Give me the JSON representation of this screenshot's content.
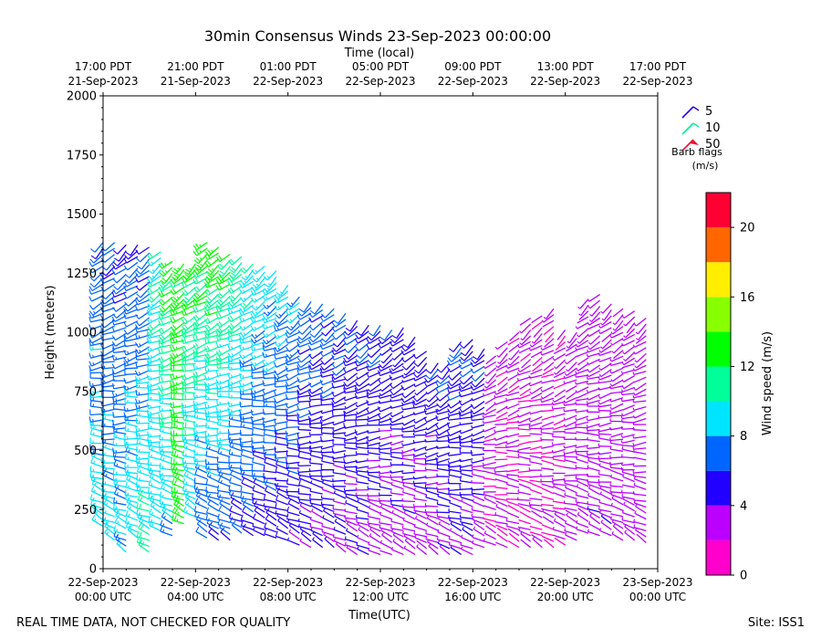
{
  "chart_data": {
    "type": "wind-barb time-height",
    "title": "30min Consensus Winds 23-Sep-2023 00:00:00",
    "top_axis_label": "Time (local)",
    "xlabel": "Time(UTC)",
    "ylabel": "Height (meters)",
    "ylim": [
      0,
      2000
    ],
    "xlim_hours_utc": [
      0,
      24
    ],
    "y_ticks": [
      "0",
      "250",
      "500",
      "750",
      "1000",
      "1250",
      "1500",
      "1750",
      "2000"
    ],
    "bottom_ticks": [
      {
        "line1": "22-Sep-2023",
        "line2": "00:00 UTC",
        "hour": 0
      },
      {
        "line1": "22-Sep-2023",
        "line2": "04:00 UTC",
        "hour": 4
      },
      {
        "line1": "22-Sep-2023",
        "line2": "08:00 UTC",
        "hour": 8
      },
      {
        "line1": "22-Sep-2023",
        "line2": "12:00 UTC",
        "hour": 12
      },
      {
        "line1": "22-Sep-2023",
        "line2": "16:00 UTC",
        "hour": 16
      },
      {
        "line1": "22-Sep-2023",
        "line2": "20:00 UTC",
        "hour": 20
      },
      {
        "line1": "23-Sep-2023",
        "line2": "00:00 UTC",
        "hour": 24
      }
    ],
    "top_ticks": [
      {
        "line1": "17:00 PDT",
        "line2": "21-Sep-2023",
        "hour": 0
      },
      {
        "line1": "21:00 PDT",
        "line2": "21-Sep-2023",
        "hour": 4
      },
      {
        "line1": "01:00 PDT",
        "line2": "22-Sep-2023",
        "hour": 8
      },
      {
        "line1": "05:00 PDT",
        "line2": "22-Sep-2023",
        "hour": 12
      },
      {
        "line1": "09:00 PDT",
        "line2": "22-Sep-2023",
        "hour": 16
      },
      {
        "line1": "13:00 PDT",
        "line2": "22-Sep-2023",
        "hour": 20
      },
      {
        "line1": "17:00 PDT",
        "line2": "22-Sep-2023",
        "hour": 24
      }
    ],
    "legend": {
      "title_line1": "Barb flags",
      "title_line2": "(m/s)",
      "entries": [
        {
          "label": "5",
          "color": "#2200ee"
        },
        {
          "label": "10",
          "color": "#00ee99"
        },
        {
          "label": "50",
          "color": "#ee1133"
        }
      ]
    },
    "colorbar": {
      "label": "Wind speed (m/s)",
      "range": [
        0,
        22
      ],
      "ticks": [
        "0",
        "4",
        "8",
        "12",
        "16",
        "20"
      ],
      "tick_values": [
        0,
        4,
        8,
        12,
        16,
        20
      ],
      "colors": [
        "#ff00cc",
        "#bb00ff",
        "#2200ff",
        "#0066ff",
        "#00e5ff",
        "#00ff99",
        "#00ff00",
        "#88ff00",
        "#ffee00",
        "#ff6600",
        "#ff0033"
      ]
    },
    "profiles": [
      {
        "hour": 0.0,
        "top": 1380,
        "bottom": 180,
        "speed_top": 6.5,
        "speed_bottom": 9.0,
        "dir_top": 225,
        "dir_bottom": 300
      },
      {
        "hour": 0.5,
        "top": 1380,
        "bottom": 120,
        "speed_top": 6.0,
        "speed_bottom": 9.0,
        "dir_top": 225,
        "dir_bottom": 300
      },
      {
        "hour": 1.0,
        "top": 1370,
        "bottom": 70,
        "speed_top": 6.0,
        "speed_bottom": 8.5,
        "dir_top": 225,
        "dir_bottom": 300
      },
      {
        "hour": 1.5,
        "top": 1370,
        "bottom": 130,
        "speed_top": 6.0,
        "speed_bottom": 9.5,
        "dir_top": 225,
        "dir_bottom": 300
      },
      {
        "hour": 2.0,
        "top": 1360,
        "bottom": 70,
        "speed_top": 6.0,
        "speed_bottom": 10.5,
        "dir_top": 225,
        "dir_bottom": 300
      },
      {
        "hour": 2.5,
        "top": 1340,
        "bottom": 160,
        "speed_top": 10.0,
        "speed_bottom": 8.5,
        "dir_top": 225,
        "dir_bottom": 300
      },
      {
        "hour": 3.0,
        "top": 1300,
        "bottom": 140,
        "speed_top": 12.5,
        "speed_bottom": 8.0,
        "dir_top": 225,
        "dir_bottom": 300
      },
      {
        "hour": 3.5,
        "top": 1290,
        "bottom": 190,
        "speed_top": 12.5,
        "speed_bottom": 13.0,
        "dir_top": 225,
        "dir_bottom": 300
      },
      {
        "hour": 4.0,
        "top": 1290,
        "bottom": 220,
        "speed_top": 12.5,
        "speed_bottom": 8.5,
        "dir_top": 225,
        "dir_bottom": 300
      },
      {
        "hour": 4.5,
        "top": 1380,
        "bottom": 130,
        "speed_top": 13.0,
        "speed_bottom": 6.5,
        "dir_top": 225,
        "dir_bottom": 300
      },
      {
        "hour": 5.0,
        "top": 1360,
        "bottom": 120,
        "speed_top": 13.0,
        "speed_bottom": 6.0,
        "dir_top": 225,
        "dir_bottom": 300
      },
      {
        "hour": 5.5,
        "top": 1330,
        "bottom": 120,
        "speed_top": 12.5,
        "speed_bottom": 6.0,
        "dir_top": 225,
        "dir_bottom": 300
      },
      {
        "hour": 6.0,
        "top": 1320,
        "bottom": 150,
        "speed_top": 11.5,
        "speed_bottom": 5.5,
        "dir_top": 225,
        "dir_bottom": 300
      },
      {
        "hour": 6.5,
        "top": 1290,
        "bottom": 140,
        "speed_top": 10.0,
        "speed_bottom": 5.5,
        "dir_top": 225,
        "dir_bottom": 300
      },
      {
        "hour": 7.0,
        "top": 1280,
        "bottom": 140,
        "speed_top": 9.5,
        "speed_bottom": 5.0,
        "dir_top": 225,
        "dir_bottom": 300
      },
      {
        "hour": 7.5,
        "top": 1260,
        "bottom": 130,
        "speed_top": 9.0,
        "speed_bottom": 5.0,
        "dir_top": 225,
        "dir_bottom": 300
      },
      {
        "hour": 8.0,
        "top": 1200,
        "bottom": 120,
        "speed_top": 8.5,
        "speed_bottom": 4.5,
        "dir_top": 225,
        "dir_bottom": 300
      },
      {
        "hour": 8.5,
        "top": 1150,
        "bottom": 100,
        "speed_top": 8.0,
        "speed_bottom": 4.5,
        "dir_top": 225,
        "dir_bottom": 300
      },
      {
        "hour": 9.0,
        "top": 1130,
        "bottom": 90,
        "speed_top": 7.0,
        "speed_bottom": 4.0,
        "dir_top": 225,
        "dir_bottom": 300
      },
      {
        "hour": 9.5,
        "top": 1120,
        "bottom": 90,
        "speed_top": 6.5,
        "speed_bottom": 4.0,
        "dir_top": 225,
        "dir_bottom": 300
      },
      {
        "hour": 10.0,
        "top": 1100,
        "bottom": 90,
        "speed_top": 6.5,
        "speed_bottom": 4.0,
        "dir_top": 225,
        "dir_bottom": 300
      },
      {
        "hour": 10.5,
        "top": 1080,
        "bottom": 70,
        "speed_top": 6.5,
        "speed_bottom": 3.5,
        "dir_top": 225,
        "dir_bottom": 300
      },
      {
        "hour": 11.0,
        "top": 1050,
        "bottom": 60,
        "speed_top": 6.0,
        "speed_bottom": 3.5,
        "dir_top": 225,
        "dir_bottom": 300
      },
      {
        "hour": 11.5,
        "top": 1030,
        "bottom": 60,
        "speed_top": 6.0,
        "speed_bottom": 3.5,
        "dir_top": 225,
        "dir_bottom": 300
      },
      {
        "hour": 12.0,
        "top": 1030,
        "bottom": 60,
        "speed_top": 6.0,
        "speed_bottom": 3.0,
        "dir_top": 225,
        "dir_bottom": 300
      },
      {
        "hour": 12.5,
        "top": 1010,
        "bottom": 60,
        "speed_top": 5.5,
        "speed_bottom": 3.0,
        "dir_top": 225,
        "dir_bottom": 300
      },
      {
        "hour": 13.0,
        "top": 1020,
        "bottom": 60,
        "speed_top": 5.5,
        "speed_bottom": 3.0,
        "dir_top": 225,
        "dir_bottom": 300
      },
      {
        "hour": 13.5,
        "top": 980,
        "bottom": 60,
        "speed_top": 5.5,
        "speed_bottom": 3.0,
        "dir_top": 225,
        "dir_bottom": 300
      },
      {
        "hour": 14.0,
        "top": 920,
        "bottom": 60,
        "speed_top": 5.5,
        "speed_bottom": 3.0,
        "dir_top": 225,
        "dir_bottom": 300
      },
      {
        "hour": 14.5,
        "top": 870,
        "bottom": 60,
        "speed_top": 5.5,
        "speed_bottom": 3.0,
        "dir_top": 225,
        "dir_bottom": 300
      },
      {
        "hour": 15.0,
        "top": 870,
        "bottom": 60,
        "speed_top": 6.0,
        "speed_bottom": 3.5,
        "dir_top": 225,
        "dir_bottom": 300
      },
      {
        "hour": 15.5,
        "top": 960,
        "bottom": 60,
        "speed_top": 6.0,
        "speed_bottom": 4.0,
        "dir_top": 225,
        "dir_bottom": 300
      },
      {
        "hour": 16.0,
        "top": 970,
        "bottom": 60,
        "speed_top": 6.0,
        "speed_bottom": 4.0,
        "dir_top": 225,
        "dir_bottom": 300
      },
      {
        "hour": 16.5,
        "top": 930,
        "bottom": 90,
        "speed_top": 6.0,
        "speed_bottom": 3.0,
        "dir_top": 225,
        "dir_bottom": 300
      },
      {
        "hour": 17.0,
        "top": 900,
        "bottom": 100,
        "speed_top": 3.0,
        "speed_bottom": 2.0,
        "dir_top": 225,
        "dir_bottom": 300
      },
      {
        "hour": 17.5,
        "top": 960,
        "bottom": 90,
        "speed_top": 2.5,
        "speed_bottom": 2.0,
        "dir_top": 225,
        "dir_bottom": 300
      },
      {
        "hour": 18.0,
        "top": 1000,
        "bottom": 90,
        "speed_top": 2.5,
        "speed_bottom": 2.0,
        "dir_top": 225,
        "dir_bottom": 300
      },
      {
        "hour": 18.5,
        "top": 1060,
        "bottom": 90,
        "speed_top": 2.5,
        "speed_bottom": 2.0,
        "dir_top": 225,
        "dir_bottom": 300
      },
      {
        "hour": 19.0,
        "top": 1070,
        "bottom": 90,
        "speed_top": 2.5,
        "speed_bottom": 2.0,
        "dir_top": 225,
        "dir_bottom": 300
      },
      {
        "hour": 19.5,
        "top": 1100,
        "bottom": 90,
        "speed_top": 2.5,
        "speed_bottom": 2.0,
        "dir_top": 225,
        "dir_bottom": 300
      },
      {
        "hour": 20.0,
        "top": 1010,
        "bottom": 100,
        "speed_top": 2.5,
        "speed_bottom": 2.5,
        "dir_top": 225,
        "dir_bottom": 300
      },
      {
        "hour": 20.5,
        "top": 1000,
        "bottom": 120,
        "speed_top": 3.0,
        "speed_bottom": 3.0,
        "dir_top": 225,
        "dir_bottom": 300
      },
      {
        "hour": 21.0,
        "top": 1140,
        "bottom": 150,
        "speed_top": 3.0,
        "speed_bottom": 3.0,
        "dir_top": 225,
        "dir_bottom": 300
      },
      {
        "hour": 21.5,
        "top": 1160,
        "bottom": 140,
        "speed_top": 3.0,
        "speed_bottom": 3.5,
        "dir_top": 225,
        "dir_bottom": 300
      },
      {
        "hour": 22.0,
        "top": 1120,
        "bottom": 140,
        "speed_top": 3.0,
        "speed_bottom": 3.5,
        "dir_top": 225,
        "dir_bottom": 300
      },
      {
        "hour": 22.5,
        "top": 1100,
        "bottom": 120,
        "speed_top": 3.0,
        "speed_bottom": 3.0,
        "dir_top": 225,
        "dir_bottom": 300
      },
      {
        "hour": 23.0,
        "top": 1090,
        "bottom": 120,
        "speed_top": 3.0,
        "speed_bottom": 3.0,
        "dir_top": 225,
        "dir_bottom": 300
      },
      {
        "hour": 23.5,
        "top": 1060,
        "bottom": 110,
        "speed_top": 3.0,
        "speed_bottom": 3.0,
        "dir_top": 225,
        "dir_bottom": 300
      }
    ]
  },
  "footer": {
    "left": "REAL TIME DATA, NOT CHECKED FOR QUALITY",
    "right": "Site: ISS1"
  }
}
